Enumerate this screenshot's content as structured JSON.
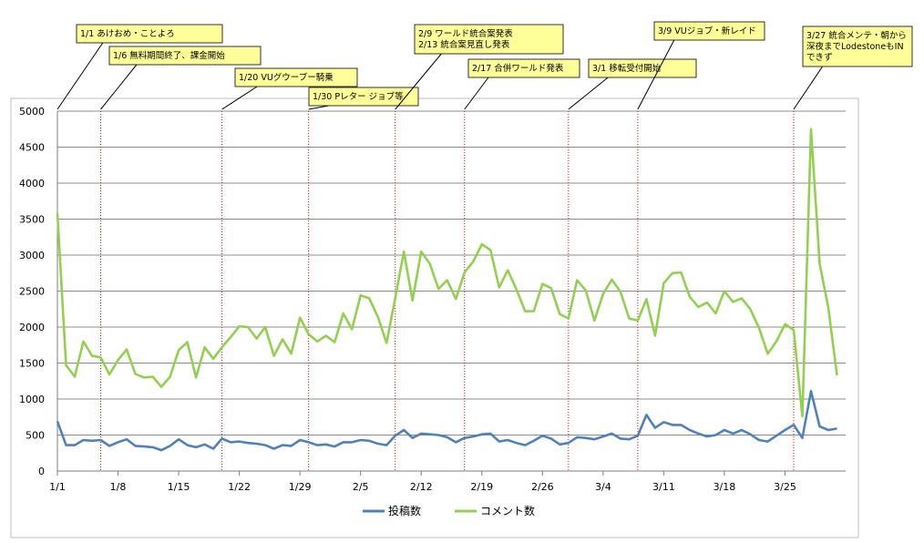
{
  "chart_data": {
    "type": "line",
    "title": "",
    "xlabel": "",
    "ylabel": "",
    "ylim": [
      0,
      5000
    ],
    "yticks": [
      0,
      500,
      1000,
      1500,
      2000,
      2500,
      3000,
      3500,
      4000,
      4500,
      5000
    ],
    "x_tick_labels": [
      "1/1",
      "1/8",
      "1/15",
      "1/22",
      "1/29",
      "2/5",
      "2/12",
      "2/19",
      "2/26",
      "3/4",
      "3/11",
      "3/18",
      "3/25"
    ],
    "x_tick_day_index": [
      0,
      7,
      14,
      21,
      28,
      35,
      42,
      49,
      56,
      63,
      70,
      77,
      84
    ],
    "x_range_days": [
      0,
      91
    ],
    "grid": "horizontal",
    "legend_position": "bottom",
    "series": [
      {
        "name": "投稿数",
        "color": "#4f81bd",
        "values": [
          690,
          360,
          360,
          430,
          420,
          430,
          350,
          400,
          440,
          350,
          340,
          330,
          290,
          350,
          440,
          360,
          330,
          370,
          310,
          450,
          400,
          410,
          390,
          380,
          360,
          310,
          360,
          350,
          430,
          400,
          360,
          370,
          340,
          400,
          400,
          430,
          420,
          380,
          360,
          490,
          570,
          460,
          520,
          510,
          500,
          470,
          400,
          460,
          480,
          510,
          520,
          410,
          430,
          390,
          360,
          420,
          490,
          450,
          370,
          390,
          470,
          460,
          440,
          480,
          520,
          450,
          440,
          490,
          780,
          600,
          680,
          640,
          640,
          570,
          520,
          480,
          500,
          570,
          520,
          570,
          510,
          430,
          410,
          490,
          570,
          640,
          460,
          1110,
          620,
          570,
          590
        ]
      },
      {
        "name": "コメント数",
        "color": "#92d050",
        "values": [
          3580,
          1470,
          1310,
          1800,
          1600,
          1580,
          1340,
          1540,
          1690,
          1350,
          1300,
          1310,
          1170,
          1310,
          1680,
          1790,
          1300,
          1720,
          1560,
          1720,
          1860,
          2010,
          2000,
          1840,
          2000,
          1600,
          1830,
          1630,
          2130,
          1900,
          1800,
          1880,
          1790,
          2190,
          1970,
          2440,
          2400,
          2140,
          1780,
          2400,
          3050,
          2370,
          3050,
          2880,
          2530,
          2650,
          2390,
          2760,
          2910,
          3150,
          3070,
          2550,
          2790,
          2520,
          2220,
          2220,
          2600,
          2540,
          2180,
          2120,
          2650,
          2510,
          2090,
          2460,
          2660,
          2490,
          2120,
          2090,
          2390,
          1880,
          2610,
          2750,
          2760,
          2420,
          2280,
          2340,
          2190,
          2500,
          2350,
          2400,
          2250,
          1990,
          1630,
          1800,
          2040,
          1960,
          760,
          4750,
          2880,
          2270,
          1330
        ]
      }
    ],
    "annotations": [
      {
        "day": 0,
        "lines": [
          "1/1 あけおめ・ことよろ"
        ]
      },
      {
        "day": 5,
        "lines": [
          "1/6 無料期間終了、課金開始"
        ]
      },
      {
        "day": 19,
        "lines": [
          "1/20 VUグウーブー騎乗"
        ]
      },
      {
        "day": 29,
        "lines": [
          "1/30 Pレター ジョブ等"
        ]
      },
      {
        "day": 39,
        "lines": [
          "2/9 ワールド統合案発表",
          "2/13 統合案見直し発表"
        ]
      },
      {
        "day": 47,
        "lines": [
          "2/17 合併ワールド発表"
        ]
      },
      {
        "day": 59,
        "lines": [
          "3/1 移転受付開始"
        ]
      },
      {
        "day": 67,
        "lines": [
          "3/9 VUジョブ・新レイド"
        ]
      },
      {
        "day": 85,
        "lines": [
          "3/27 統合メンテ・朝から",
          "深夜までLodestoneもIN",
          "できず"
        ]
      }
    ]
  }
}
